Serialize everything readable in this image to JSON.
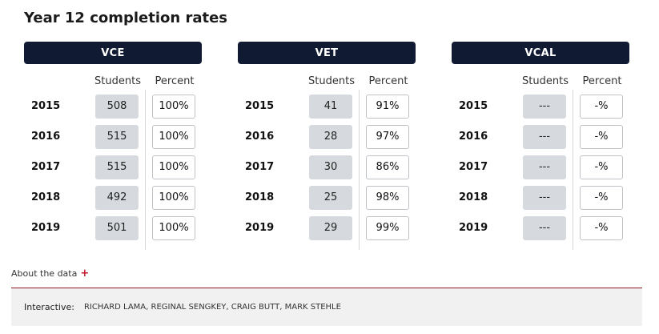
{
  "title": "Year 12 completion rates",
  "columns": {
    "students": "Students",
    "percent": "Percent"
  },
  "chart_data": {
    "type": "table",
    "title": "Year 12 completion rates",
    "columns": [
      "Students",
      "Percent"
    ],
    "years": [
      "2015",
      "2016",
      "2017",
      "2018",
      "2019"
    ],
    "panels": [
      {
        "name": "VCE",
        "students": [
          "508",
          "515",
          "515",
          "492",
          "501"
        ],
        "percent": [
          "100%",
          "100%",
          "100%",
          "100%",
          "100%"
        ]
      },
      {
        "name": "VET",
        "students": [
          "41",
          "28",
          "30",
          "25",
          "29"
        ],
        "percent": [
          "91%",
          "97%",
          "86%",
          "98%",
          "99%"
        ]
      },
      {
        "name": "VCAL",
        "students": [
          "---",
          "---",
          "---",
          "---",
          "---"
        ],
        "percent": [
          "-%",
          "-%",
          "-%",
          "-%",
          "-%"
        ]
      }
    ]
  },
  "about": {
    "label": "About the data",
    "icon": "plus-icon",
    "icon_color": "#c0182c"
  },
  "footer": {
    "label": "Interactive:",
    "credits": "RICHARD LAMA, REGINAL SENGKEY, CRAIG BUTT, MARK STEHLE"
  },
  "colors": {
    "header_bg": "#111a33",
    "student_cell_bg": "#d6d9dd",
    "footer_rule": "#8c1a24",
    "footer_bg": "#f1f1f1"
  }
}
